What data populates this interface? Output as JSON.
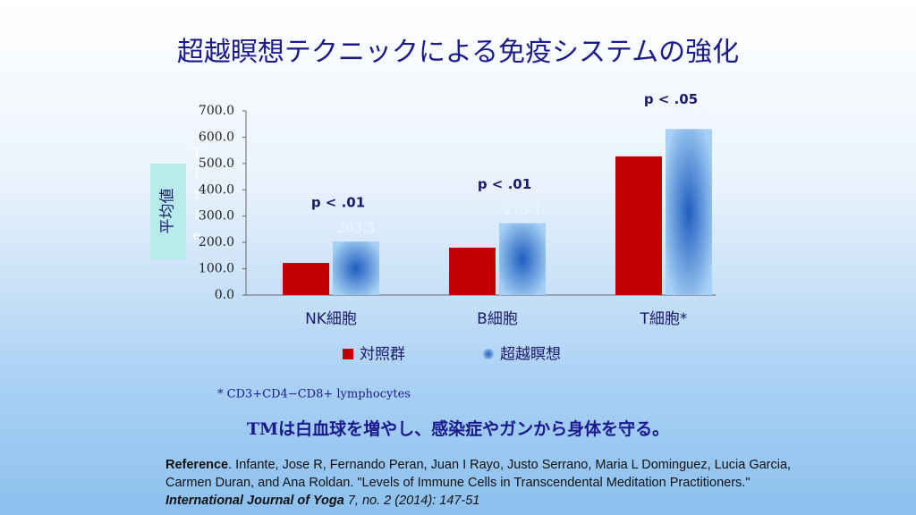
{
  "title": "超越瞑想テクニックによる免疫システムの強化",
  "chart_data": {
    "type": "bar",
    "y_axis_label": "平均値",
    "y_axis_overlay": "Title",
    "categories": [
      "NK細胞",
      "B細胞",
      "T細胞*"
    ],
    "series": [
      {
        "name": "対照群",
        "color": "#c00000",
        "values": [
          122,
          180,
          527
        ]
      },
      {
        "name": "超越瞑想",
        "color": "#1f5fbf",
        "values": [
          203.5,
          273.1,
          630.9
        ]
      }
    ],
    "annotations": [
      "p < .01",
      "p < .01",
      "p < .05"
    ],
    "ylim": [
      0,
      700
    ],
    "yticks": [
      {
        "value": 0,
        "label": "0.0"
      },
      {
        "value": 100,
        "label": "100.0"
      },
      {
        "value": 200,
        "label": "200.0"
      },
      {
        "value": 300,
        "label": "300.0"
      },
      {
        "value": 400,
        "label": "400.0"
      },
      {
        "value": 500,
        "label": "500.0"
      },
      {
        "value": 600,
        "label": "600.0"
      },
      {
        "value": 700,
        "label": "700.0"
      }
    ],
    "grid": false
  },
  "footnote": "* CD3+CD4−CD8+ lymphocytes",
  "message": "TMは白血球を増やし、感染症やガンから身体を守る。",
  "reference": {
    "label": "Reference",
    "text": ". Infante, Jose R, Fernando Peran, Juan I Rayo, Justo Serrano, Maria L Dominguez, Lucia Garcia, Carmen Duran, and Ana Roldan. \"Levels of Immune Cells in Transcendental Meditation Practitioners.\" ",
    "journal": "International Journal of Yoga",
    "citation": " 7, no. 2 (2014): 147-51"
  }
}
